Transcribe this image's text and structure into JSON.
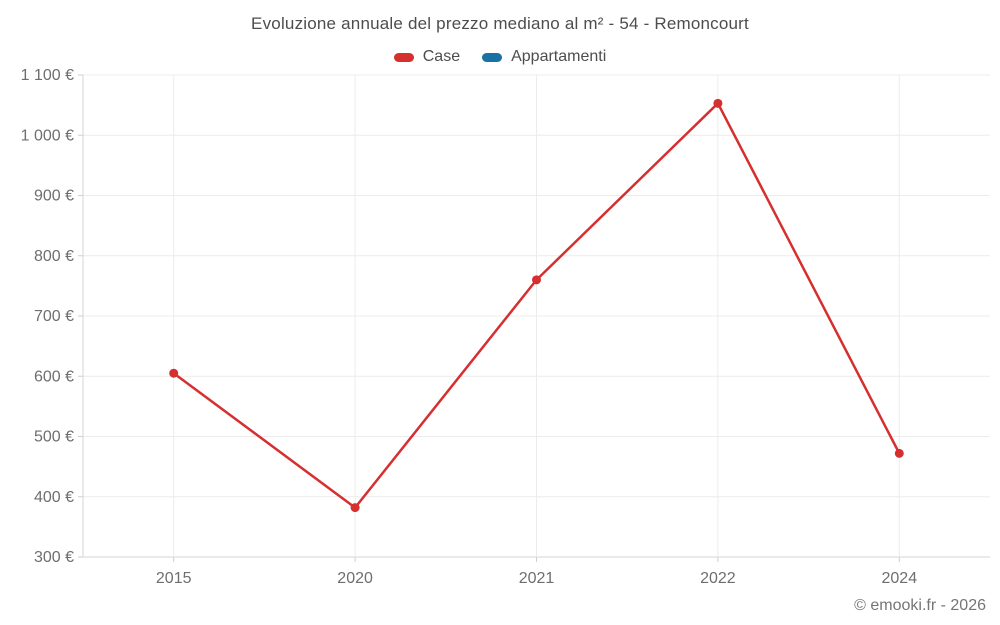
{
  "title": "Evoluzione annuale del prezzo mediano al m² - 54 - Remoncourt",
  "legend": {
    "items": [
      {
        "label": "Case",
        "color": "#d62f2f"
      },
      {
        "label": "Appartamenti",
        "color": "#1a71a4"
      }
    ]
  },
  "footer": {
    "copyright": "© emooki.fr - 2026"
  },
  "colors": {
    "background": "#ffffff",
    "grid": "#ececec",
    "axis": "#d6d6d6",
    "tick": "#cfcfcf",
    "title_text": "#4d4d4d",
    "axis_text": "#6e6e6e",
    "case_red": "#d62f2f",
    "appartamenti_blue": "#1a71a4"
  },
  "chart_data": {
    "type": "line",
    "title": "Evoluzione annuale del prezzo mediano al m² - 54 - Remoncourt",
    "categories": [
      "2015",
      "2020",
      "2021",
      "2022",
      "2024"
    ],
    "series": [
      {
        "name": "Case",
        "color": "#d62f2f",
        "values": [
          605,
          382,
          760,
          1053,
          472
        ]
      },
      {
        "name": "Appartamenti",
        "color": "#1a71a4",
        "values": [
          null,
          null,
          null,
          null,
          null
        ]
      }
    ],
    "xlabel": "",
    "ylabel": "",
    "ylim": [
      300,
      1100
    ],
    "ytick_step": 100,
    "ytick_labels": [
      "300 €",
      "400 €",
      "500 €",
      "600 €",
      "700 €",
      "800 €",
      "900 €",
      "1 000 €",
      "1 100 €"
    ],
    "unit": "€",
    "grid": true,
    "legend_position": "top-center"
  }
}
